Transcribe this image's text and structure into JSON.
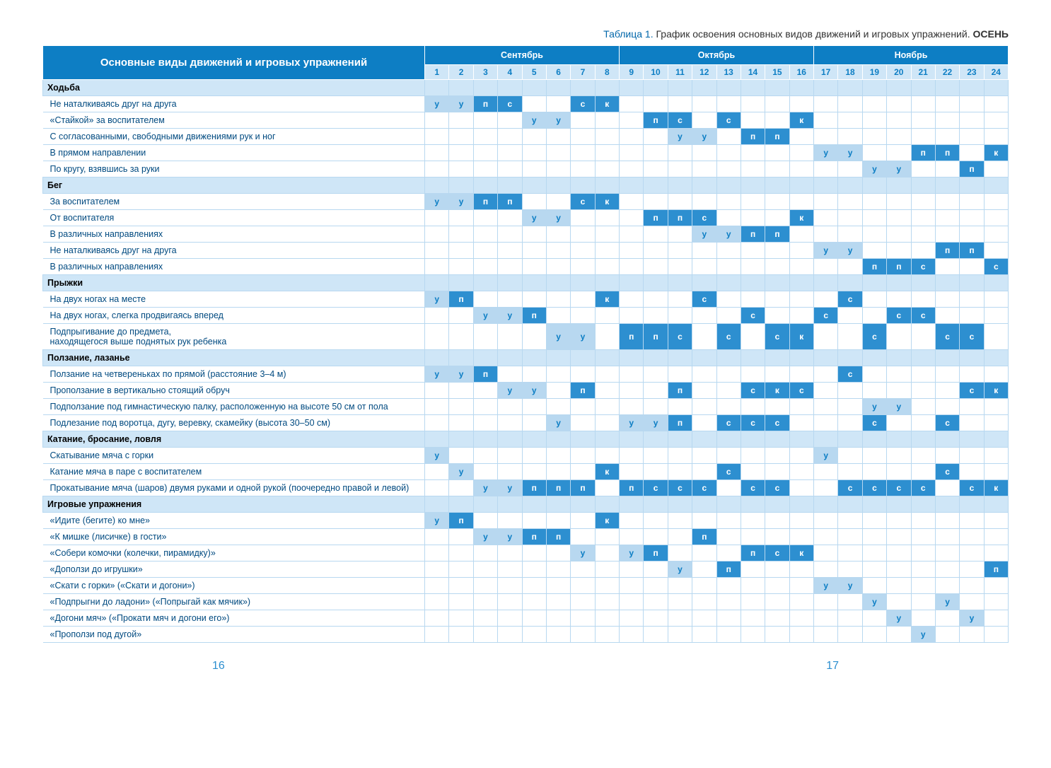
{
  "caption_prefix": "Таблица 1.",
  "caption_text": "График освоения основных видов движений и игровых упражнений.",
  "caption_season": "ОСЕНЬ",
  "main_header": "Основные виды движений и игровых упражнений",
  "months": [
    {
      "name": "Сентябрь",
      "span": 8
    },
    {
      "name": "Октябрь",
      "span": 8
    },
    {
      "name": "Ноябрь",
      "span": 8
    }
  ],
  "week_count": 24,
  "page_left": "16",
  "page_right": "17",
  "color_medium": "#b8d8f0",
  "color_dark": "#2d8fd0",
  "color_text_blue": "#0d7ec4",
  "rows": [
    {
      "type": "section",
      "label": "Ходьба"
    },
    {
      "type": "data",
      "label": "Не наталкиваясь друг на друга",
      "cells": {
        "1": [
          "у",
          "m"
        ],
        "2": [
          "у",
          "m"
        ],
        "3": [
          "п",
          "d"
        ],
        "4": [
          "с",
          "d"
        ],
        "7": [
          "с",
          "d"
        ],
        "8": [
          "к",
          "d"
        ]
      }
    },
    {
      "type": "data",
      "label": "«Стайкой» за воспитателем",
      "cells": {
        "5": [
          "у",
          "m"
        ],
        "6": [
          "у",
          "m"
        ],
        "10": [
          "п",
          "d"
        ],
        "11": [
          "с",
          "d"
        ],
        "13": [
          "с",
          "d"
        ],
        "16": [
          "к",
          "d"
        ]
      }
    },
    {
      "type": "data",
      "label": "С согласованными, свободными движениями рук и ног",
      "cells": {
        "11": [
          "у",
          "m"
        ],
        "12": [
          "у",
          "m"
        ],
        "14": [
          "п",
          "d"
        ],
        "15": [
          "п",
          "d"
        ]
      }
    },
    {
      "type": "data",
      "label": "В прямом направлении",
      "cells": {
        "17": [
          "у",
          "m"
        ],
        "18": [
          "у",
          "m"
        ],
        "21": [
          "п",
          "d"
        ],
        "22": [
          "п",
          "d"
        ],
        "24": [
          "к",
          "d"
        ]
      }
    },
    {
      "type": "data",
      "label": "По кругу, взявшись за руки",
      "cells": {
        "19": [
          "у",
          "m"
        ],
        "20": [
          "у",
          "m"
        ],
        "23": [
          "п",
          "d"
        ]
      }
    },
    {
      "type": "section",
      "label": "Бег"
    },
    {
      "type": "data",
      "label": "За воспитателем",
      "cells": {
        "1": [
          "у",
          "m"
        ],
        "2": [
          "у",
          "m"
        ],
        "3": [
          "п",
          "d"
        ],
        "4": [
          "п",
          "d"
        ],
        "7": [
          "с",
          "d"
        ],
        "8": [
          "к",
          "d"
        ]
      }
    },
    {
      "type": "data",
      "label": "От воспитателя",
      "cells": {
        "5": [
          "у",
          "m"
        ],
        "6": [
          "у",
          "m"
        ],
        "10": [
          "п",
          "d"
        ],
        "11": [
          "п",
          "d"
        ],
        "12": [
          "с",
          "d"
        ],
        "16": [
          "к",
          "d"
        ]
      }
    },
    {
      "type": "data",
      "label": "В различных направлениях",
      "cells": {
        "12": [
          "у",
          "m"
        ],
        "13": [
          "у",
          "m"
        ],
        "14": [
          "п",
          "d"
        ],
        "15": [
          "п",
          "d"
        ]
      }
    },
    {
      "type": "data",
      "label": "Не наталкиваясь друг на друга",
      "cells": {
        "17": [
          "у",
          "m"
        ],
        "18": [
          "у",
          "m"
        ],
        "22": [
          "п",
          "d"
        ],
        "23": [
          "п",
          "d"
        ]
      }
    },
    {
      "type": "data",
      "label": "В различных направлениях",
      "cells": {
        "19": [
          "п",
          "d"
        ],
        "20": [
          "п",
          "d"
        ],
        "21": [
          "с",
          "d"
        ],
        "24": [
          "с",
          "d"
        ]
      }
    },
    {
      "type": "section",
      "label": "Прыжки"
    },
    {
      "type": "data",
      "label": "На двух ногах на месте",
      "cells": {
        "1": [
          "у",
          "m"
        ],
        "2": [
          "п",
          "d"
        ],
        "8": [
          "к",
          "d"
        ],
        "12": [
          "с",
          "d"
        ],
        "18": [
          "с",
          "d"
        ]
      }
    },
    {
      "type": "data",
      "label": "На двух ногах, слегка продвигаясь вперед",
      "cells": {
        "3": [
          "у",
          "m"
        ],
        "4": [
          "у",
          "m"
        ],
        "5": [
          "п",
          "d"
        ],
        "14": [
          "с",
          "d"
        ],
        "17": [
          "с",
          "d"
        ],
        "20": [
          "с",
          "d"
        ],
        "21": [
          "с",
          "d"
        ]
      }
    },
    {
      "type": "data",
      "label": "Подпрыгивание до предмета,\nнаходящегося выше поднятых рук ребенка",
      "cells": {
        "6": [
          "у",
          "m"
        ],
        "7": [
          "у",
          "m"
        ],
        "9": [
          "п",
          "d"
        ],
        "10": [
          "п",
          "d"
        ],
        "11": [
          "с",
          "d"
        ],
        "13": [
          "с",
          "d"
        ],
        "15": [
          "с",
          "d"
        ],
        "16": [
          "к",
          "d"
        ],
        "19": [
          "с",
          "d"
        ],
        "22": [
          "с",
          "d"
        ],
        "23": [
          "с",
          "d"
        ]
      }
    },
    {
      "type": "section",
      "label": "Ползание, лазанье"
    },
    {
      "type": "data",
      "label": "Ползание на четвереньках по прямой (расстояние 3–4 м)",
      "cells": {
        "1": [
          "у",
          "m"
        ],
        "2": [
          "у",
          "m"
        ],
        "3": [
          "п",
          "d"
        ],
        "18": [
          "с",
          "d"
        ]
      }
    },
    {
      "type": "data",
      "label": "Проползание в вертикально стоящий обруч",
      "cells": {
        "4": [
          "у",
          "m"
        ],
        "5": [
          "у",
          "m"
        ],
        "7": [
          "п",
          "d"
        ],
        "11": [
          "п",
          "d"
        ],
        "14": [
          "с",
          "d"
        ],
        "15": [
          "к",
          "d"
        ],
        "16": [
          "с",
          "d"
        ],
        "23": [
          "с",
          "d"
        ],
        "24": [
          "к",
          "d"
        ]
      }
    },
    {
      "type": "data",
      "label": "Подползание под гимнастическую палку, расположенную на высоте 50 см от пола",
      "cells": {
        "19": [
          "у",
          "m"
        ],
        "20": [
          "у",
          "m"
        ]
      }
    },
    {
      "type": "data",
      "label": "Подлезание под воротца, дугу, веревку, скамейку (высота 30–50 см)",
      "cells": {
        "6": [
          "у",
          "m"
        ],
        "9": [
          "у",
          "m"
        ],
        "10": [
          "у",
          "m"
        ],
        "11": [
          "п",
          "d"
        ],
        "13": [
          "с",
          "d"
        ],
        "14": [
          "с",
          "d"
        ],
        "15": [
          "с",
          "d"
        ],
        "19": [
          "с",
          "d"
        ],
        "22": [
          "с",
          "d"
        ]
      }
    },
    {
      "type": "section",
      "label": "Катание, бросание, ловля"
    },
    {
      "type": "data",
      "label": "Скатывание мяча с горки",
      "cells": {
        "1": [
          "у",
          "m"
        ],
        "17": [
          "у",
          "m"
        ]
      }
    },
    {
      "type": "data",
      "label": "Катание мяча в паре с воспитателем",
      "cells": {
        "2": [
          "у",
          "m"
        ],
        "8": [
          "к",
          "d"
        ],
        "13": [
          "с",
          "d"
        ],
        "22": [
          "с",
          "d"
        ]
      }
    },
    {
      "type": "data",
      "label": "Прокатывание мяча (шаров) двумя руками и одной рукой (поочередно правой и левой)",
      "cells": {
        "3": [
          "у",
          "m"
        ],
        "4": [
          "у",
          "m"
        ],
        "5": [
          "п",
          "d"
        ],
        "6": [
          "п",
          "d"
        ],
        "7": [
          "п",
          "d"
        ],
        "9": [
          "п",
          "d"
        ],
        "10": [
          "с",
          "d"
        ],
        "11": [
          "с",
          "d"
        ],
        "12": [
          "с",
          "d"
        ],
        "14": [
          "с",
          "d"
        ],
        "15": [
          "с",
          "d"
        ],
        "18": [
          "с",
          "d"
        ],
        "19": [
          "с",
          "d"
        ],
        "20": [
          "с",
          "d"
        ],
        "21": [
          "с",
          "d"
        ],
        "23": [
          "с",
          "d"
        ],
        "24": [
          "к",
          "d"
        ]
      }
    },
    {
      "type": "section",
      "label": "Игровые упражнения"
    },
    {
      "type": "data",
      "label": "«Идите (бегите) ко мне»",
      "cells": {
        "1": [
          "у",
          "m"
        ],
        "2": [
          "п",
          "d"
        ],
        "8": [
          "к",
          "d"
        ]
      }
    },
    {
      "type": "data",
      "label": "«К мишке (лисичке) в гости»",
      "cells": {
        "3": [
          "у",
          "m"
        ],
        "4": [
          "у",
          "m"
        ],
        "5": [
          "п",
          "d"
        ],
        "6": [
          "п",
          "d"
        ],
        "12": [
          "п",
          "d"
        ]
      }
    },
    {
      "type": "data",
      "label": "«Собери комочки (колечки, пирамидку)»",
      "cells": {
        "7": [
          "у",
          "m"
        ],
        "9": [
          "у",
          "m"
        ],
        "10": [
          "п",
          "d"
        ],
        "14": [
          "п",
          "d"
        ],
        "15": [
          "с",
          "d"
        ],
        "16": [
          "к",
          "d"
        ]
      }
    },
    {
      "type": "data",
      "label": "«Доползи до игрушки»",
      "cells": {
        "11": [
          "у",
          "m"
        ],
        "13": [
          "п",
          "d"
        ],
        "24": [
          "п",
          "d"
        ]
      }
    },
    {
      "type": "data",
      "label": "«Скати с горки» («Скати и догони»)",
      "cells": {
        "17": [
          "у",
          "m"
        ],
        "18": [
          "у",
          "m"
        ]
      }
    },
    {
      "type": "data",
      "label": "«Подпрыгни до ладони» («Попрыгай как мячик»)",
      "cells": {
        "19": [
          "у",
          "m"
        ],
        "22": [
          "у",
          "m"
        ]
      }
    },
    {
      "type": "data",
      "label": "«Догони мяч» («Прокати мяч и догони его»)",
      "cells": {
        "20": [
          "у",
          "m"
        ],
        "23": [
          "у",
          "m"
        ]
      }
    },
    {
      "type": "data",
      "label": "«Проползи под дугой»",
      "cells": {
        "21": [
          "у",
          "m"
        ]
      }
    }
  ]
}
